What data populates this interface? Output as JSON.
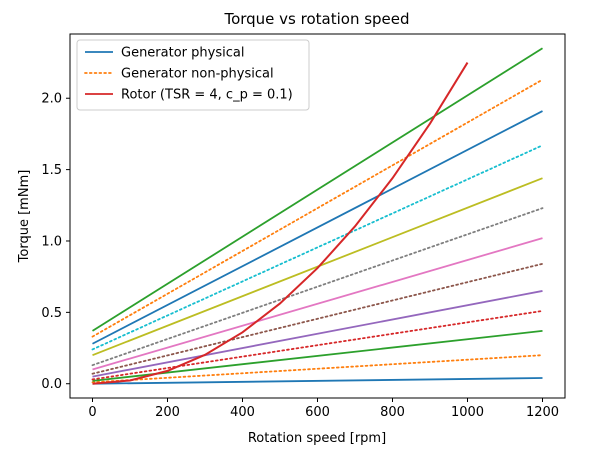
{
  "chart_data": {
    "type": "line",
    "title": "Torque vs rotation speed",
    "xlabel": "Rotation speed [rpm]",
    "ylabel": "Torque [mNm]",
    "xlim": [
      -60,
      1260
    ],
    "ylim": [
      -0.1,
      2.45
    ],
    "xticks": [
      0,
      200,
      400,
      600,
      800,
      1000,
      1200
    ],
    "yticks": [
      0.0,
      0.5,
      1.0,
      1.5,
      2.0
    ],
    "grid": false,
    "legend_position": "top-left",
    "legend": [
      {
        "label": "Generator physical",
        "color": "#1f77b4",
        "style": "solid"
      },
      {
        "label": "Generator non-physical",
        "color": "#ff7f0e",
        "style": "dotted"
      },
      {
        "label": "Rotor (TSR = 4, c_p = 0.1)",
        "color": "#d62728",
        "style": "solid"
      }
    ],
    "generator_lines": [
      {
        "color": "#1f77b4",
        "style": "solid",
        "y0": 0.0,
        "y1": 0.04
      },
      {
        "color": "#ff7f0e",
        "style": "dotted",
        "y0": 0.01,
        "y1": 0.2
      },
      {
        "color": "#2ca02c",
        "style": "solid",
        "y0": 0.02,
        "y1": 0.37
      },
      {
        "color": "#d62728",
        "style": "dotted",
        "y0": 0.03,
        "y1": 0.51
      },
      {
        "color": "#9467bd",
        "style": "solid",
        "y0": 0.05,
        "y1": 0.65
      },
      {
        "color": "#8c564b",
        "style": "dotted",
        "y0": 0.07,
        "y1": 0.84
      },
      {
        "color": "#e377c2",
        "style": "solid",
        "y0": 0.1,
        "y1": 1.02
      },
      {
        "color": "#7f7f7f",
        "style": "dotted",
        "y0": 0.13,
        "y1": 1.23
      },
      {
        "color": "#bcbd22",
        "style": "solid",
        "y0": 0.2,
        "y1": 1.44
      },
      {
        "color": "#17becf",
        "style": "dotted",
        "y0": 0.24,
        "y1": 1.67
      },
      {
        "color": "#1f77b4",
        "style": "solid",
        "y0": 0.28,
        "y1": 1.91
      },
      {
        "color": "#ff7f0e",
        "style": "dotted",
        "y0": 0.33,
        "y1": 2.13
      },
      {
        "color": "#2ca02c",
        "style": "solid",
        "y0": 0.37,
        "y1": 2.35
      }
    ],
    "generator_x_range": [
      0,
      1200
    ],
    "rotor": {
      "color": "#d62728",
      "x": [
        0,
        100,
        200,
        300,
        400,
        500,
        600,
        700,
        800,
        900,
        1000
      ],
      "y": [
        0.0,
        0.0225,
        0.09,
        0.2025,
        0.36,
        0.5625,
        0.81,
        1.1025,
        1.44,
        1.8225,
        2.25
      ]
    }
  }
}
